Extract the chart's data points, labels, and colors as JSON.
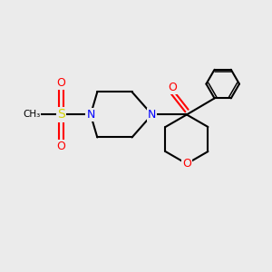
{
  "bg_color": "#ebebeb",
  "bond_color": "#000000",
  "bond_width": 1.5,
  "atom_colors": {
    "N": "#0000ff",
    "O": "#ff0000",
    "S": "#d4d400",
    "C": "#000000"
  },
  "fig_width": 3.0,
  "fig_height": 3.0,
  "xlim": [
    0,
    10
  ],
  "ylim": [
    0,
    10
  ]
}
